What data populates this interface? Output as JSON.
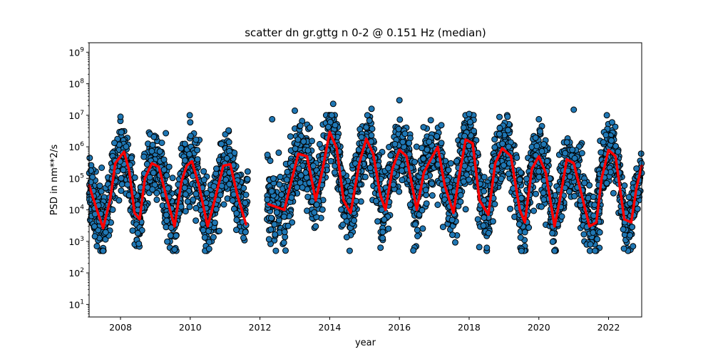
{
  "chart_data": {
    "type": "scatter",
    "title": "scatter dn gr.gttg n 0-2 @ 0.151 Hz (median)",
    "xlabel": "year",
    "ylabel": "PSD in nm**2/s",
    "xlim": [
      2007.1,
      2022.95
    ],
    "ylim": [
      4,
      2000000000
    ],
    "yscale": "log",
    "grid": false,
    "x_ticks": [
      2008,
      2010,
      2012,
      2014,
      2016,
      2018,
      2020,
      2022
    ],
    "x_tick_labels": [
      "2008",
      "2010",
      "2012",
      "2014",
      "2016",
      "2018",
      "2020",
      "2022"
    ],
    "y_ticks": [
      10,
      100,
      1000,
      10000,
      100000,
      1000000,
      10000000,
      100000000,
      1000000000
    ],
    "y_tick_labels": [
      {
        "base": "10",
        "exp": "1"
      },
      {
        "base": "10",
        "exp": "2"
      },
      {
        "base": "10",
        "exp": "3"
      },
      {
        "base": "10",
        "exp": "4"
      },
      {
        "base": "10",
        "exp": "5"
      },
      {
        "base": "10",
        "exp": "6"
      },
      {
        "base": "10",
        "exp": "7"
      },
      {
        "base": "10",
        "exp": "8"
      },
      {
        "base": "10",
        "exp": "9"
      }
    ],
    "data_gap": [
      2011.65,
      2012.2
    ],
    "scatter_series": {
      "marker_color": "#1f77b4",
      "edge_color": "#000000",
      "typical_range_log10": [
        2.7,
        6.7
      ],
      "x_range": [
        2007.1,
        2022.95
      ],
      "notable_points": [
        {
          "x": 2008.0,
          "y": 9000000
        },
        {
          "x": 2009.3,
          "y": 2700000
        },
        {
          "x": 2010.0,
          "y": 6000000
        },
        {
          "x": 2011.1,
          "y": 3300000
        },
        {
          "x": 2012.35,
          "y": 7500000
        },
        {
          "x": 2013.0,
          "y": 14000000
        },
        {
          "x": 2014.1,
          "y": 23000000
        },
        {
          "x": 2015.2,
          "y": 16000000
        },
        {
          "x": 2016.0,
          "y": 30000000
        },
        {
          "x": 2016.9,
          "y": 7000000
        },
        {
          "x": 2018.0,
          "y": 11000000
        },
        {
          "x": 2019.1,
          "y": 9000000
        },
        {
          "x": 2020.0,
          "y": 7500000
        },
        {
          "x": 2021.0,
          "y": 15000000
        },
        {
          "x": 2022.1,
          "y": 6000000
        },
        {
          "x": 2007.5,
          "y": 500
        },
        {
          "x": 2009.55,
          "y": 550
        },
        {
          "x": 2019.5,
          "y": 500
        },
        {
          "x": 2022.7,
          "y": 700
        }
      ]
    },
    "median_series": {
      "color": "#ff0000",
      "segments": [
        {
          "x": [
            2007.1,
            2007.3,
            2007.5,
            2007.7,
            2007.85,
            2008.1,
            2008.25,
            2008.4,
            2008.55,
            2008.7,
            2008.9,
            2009.1,
            2009.3,
            2009.55,
            2009.75,
            2009.9,
            2010.05,
            2010.25,
            2010.5,
            2010.7,
            2010.95,
            2011.15,
            2011.35,
            2011.6
          ],
          "y": [
            60000,
            12000,
            2600,
            20000,
            300000,
            700000,
            180000,
            8000,
            5000,
            100000,
            300000,
            230000,
            30000,
            3000,
            80000,
            250000,
            350000,
            60000,
            3000,
            20000,
            250000,
            280000,
            30000,
            3500
          ]
        },
        {
          "x": [
            2012.25,
            2012.5,
            2012.7,
            2012.9,
            2013.1,
            2013.35,
            2013.6,
            2013.8,
            2014.0,
            2014.2,
            2014.4,
            2014.6,
            2014.85,
            2015.05,
            2015.25,
            2015.45,
            2015.6,
            2015.8,
            2016.0,
            2016.2,
            2016.5,
            2016.7,
            2016.9,
            2017.1,
            2017.3,
            2017.55,
            2017.7,
            2017.9,
            2018.1,
            2018.3,
            2018.55,
            2018.75,
            2018.95,
            2019.2,
            2019.45,
            2019.6,
            2019.8,
            2020.0,
            2020.2,
            2020.45,
            2020.6,
            2020.8,
            2021.0,
            2021.2,
            2021.45,
            2021.65,
            2021.8,
            2022.0,
            2022.2,
            2022.45,
            2022.65,
            2022.8,
            2022.95
          ],
          "y": [
            15000,
            12000,
            10000,
            80000,
            600000,
            500000,
            20000,
            200000,
            3000000,
            900000,
            20000,
            8000,
            300000,
            1800000,
            600000,
            30000,
            10000,
            200000,
            800000,
            500000,
            10000,
            150000,
            400000,
            1000000,
            60000,
            8000,
            100000,
            1700000,
            1300000,
            20000,
            7000,
            300000,
            900000,
            500000,
            10000,
            4000,
            200000,
            500000,
            150000,
            3000,
            20000,
            400000,
            300000,
            40000,
            3000,
            4000,
            100000,
            800000,
            500000,
            5000,
            4000,
            50000,
            250000
          ]
        }
      ]
    }
  }
}
